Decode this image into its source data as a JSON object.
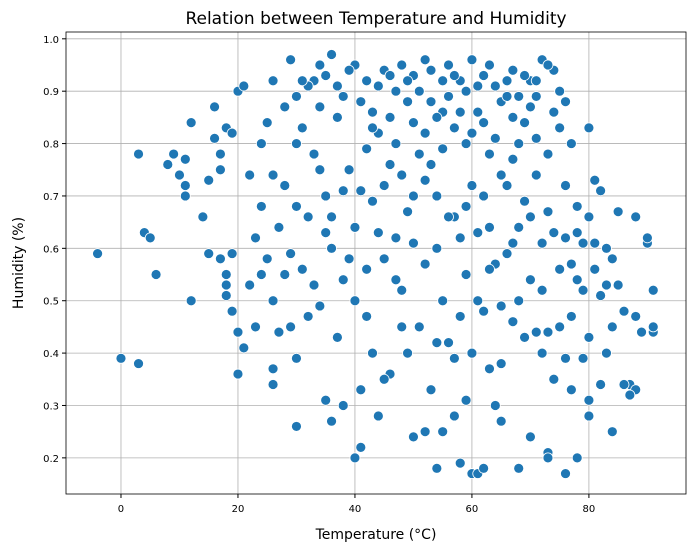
{
  "chart_data": {
    "type": "scatter",
    "title": "Relation between Temperature and Humidity",
    "x_label": "Temperature (°C)",
    "y_label": "Humidity (%)",
    "color": "#1f77b4",
    "grid": true,
    "xlim": [
      -9.4,
      96.6
    ],
    "ylim": [
      0.131,
      1.013
    ],
    "xticks": [
      0,
      20,
      40,
      60,
      80
    ],
    "yticks": [
      0.2,
      0.3,
      0.4,
      0.5,
      0.6,
      0.7,
      0.8,
      0.9,
      {
        "value": 1,
        "label": "1.0"
      }
    ],
    "x": [
      -4,
      0,
      3,
      3,
      4,
      5,
      6,
      8,
      9,
      10,
      11,
      11,
      11,
      12,
      12,
      14,
      15,
      15,
      16,
      16,
      17,
      17,
      17,
      18,
      18,
      18,
      18,
      19,
      19,
      19,
      20,
      20,
      20,
      21,
      21,
      22,
      22,
      23,
      24,
      25,
      26,
      26,
      26,
      29,
      30,
      30,
      33,
      35,
      36,
      36,
      38,
      40,
      41,
      43,
      46,
      50,
      52,
      54,
      55,
      57,
      58,
      59,
      60,
      61,
      62,
      65,
      68,
      70,
      73,
      73,
      76,
      78,
      80,
      84,
      85,
      87,
      88,
      89,
      90,
      91,
      91,
      91,
      90,
      86,
      88,
      88,
      87,
      86,
      85,
      80,
      77,
      76,
      74,
      72,
      70,
      67,
      65,
      63,
      60,
      58,
      56,
      52,
      50,
      48,
      45,
      42,
      40,
      38,
      35,
      32,
      30,
      28,
      23,
      24,
      25,
      26,
      27,
      28,
      29,
      30,
      31,
      32,
      33,
      34,
      35,
      36,
      37,
      38,
      39,
      40,
      41,
      42,
      43,
      44,
      45,
      46,
      47,
      48,
      49,
      50,
      51,
      52,
      53,
      54,
      55,
      56,
      57,
      58,
      59,
      60,
      61,
      62,
      63,
      64,
      65,
      66,
      67,
      68,
      69,
      70,
      71,
      72,
      73,
      74,
      75,
      76,
      77,
      78,
      79,
      80,
      81,
      82,
      83,
      84,
      82,
      81,
      24,
      27,
      29,
      31,
      33,
      34,
      36,
      37,
      39,
      41,
      42,
      44,
      45,
      46,
      47,
      48,
      49,
      50,
      51,
      53,
      54,
      55,
      56,
      57,
      58,
      59,
      61,
      62,
      63,
      64,
      65,
      66,
      67,
      68,
      69,
      70,
      71,
      72,
      73,
      74,
      75,
      76,
      77,
      78,
      79,
      80,
      83,
      84,
      26,
      28,
      30,
      32,
      34,
      35,
      38,
      40,
      41,
      43,
      44,
      45,
      47,
      48,
      49,
      50,
      52,
      53,
      54,
      55,
      56,
      57,
      58,
      59,
      60,
      61,
      62,
      63,
      64,
      65,
      66,
      67,
      68,
      69,
      70,
      71,
      72,
      73,
      74,
      75,
      76,
      77,
      78,
      79,
      80,
      81,
      82,
      83,
      44,
      46,
      49,
      51,
      53,
      55,
      57,
      59,
      61,
      62,
      64,
      66,
      68,
      69,
      71,
      73,
      75,
      43,
      47,
      52,
      54,
      60,
      63,
      67,
      71,
      42,
      39,
      37,
      34,
      31
    ],
    "values": [
      0.59,
      0.39,
      0.38,
      0.78,
      0.63,
      0.62,
      0.55,
      0.76,
      0.78,
      0.74,
      0.72,
      0.77,
      0.7,
      0.84,
      0.5,
      0.66,
      0.59,
      0.73,
      0.81,
      0.87,
      0.58,
      0.75,
      0.78,
      0.83,
      0.55,
      0.53,
      0.51,
      0.48,
      0.59,
      0.82,
      0.36,
      0.44,
      0.9,
      0.91,
      0.41,
      0.74,
      0.53,
      0.45,
      0.55,
      0.84,
      0.34,
      0.37,
      0.92,
      0.96,
      0.26,
      0.39,
      0.92,
      0.31,
      0.97,
      0.27,
      0.3,
      0.2,
      0.22,
      0.4,
      0.36,
      0.24,
      0.25,
      0.18,
      0.25,
      0.28,
      0.19,
      0.31,
      0.17,
      0.17,
      0.18,
      0.27,
      0.18,
      0.24,
      0.21,
      0.2,
      0.17,
      0.2,
      0.28,
      0.25,
      0.67,
      0.34,
      0.66,
      0.44,
      0.61,
      0.52,
      0.44,
      0.45,
      0.62,
      0.48,
      0.47,
      0.33,
      0.32,
      0.34,
      0.53,
      0.83,
      0.8,
      0.88,
      0.94,
      0.96,
      0.92,
      0.94,
      0.88,
      0.95,
      0.96,
      0.92,
      0.95,
      0.96,
      0.93,
      0.95,
      0.94,
      0.92,
      0.95,
      0.89,
      0.93,
      0.91,
      0.89,
      0.87,
      0.62,
      0.68,
      0.58,
      0.5,
      0.64,
      0.72,
      0.45,
      0.8,
      0.56,
      0.66,
      0.78,
      0.49,
      0.7,
      0.6,
      0.85,
      0.54,
      0.75,
      0.64,
      0.88,
      0.47,
      0.69,
      0.82,
      0.58,
      0.76,
      0.9,
      0.52,
      0.67,
      0.84,
      0.45,
      0.73,
      0.88,
      0.6,
      0.79,
      0.42,
      0.66,
      0.86,
      0.55,
      0.72,
      0.91,
      0.48,
      0.64,
      0.81,
      0.38,
      0.59,
      0.77,
      0.5,
      0.69,
      0.87,
      0.44,
      0.61,
      0.78,
      0.35,
      0.56,
      0.72,
      0.47,
      0.63,
      0.52,
      0.43,
      0.61,
      0.51,
      0.4,
      0.58,
      0.71,
      0.73,
      0.8,
      0.44,
      0.59,
      0.83,
      0.53,
      0.75,
      0.66,
      0.43,
      0.58,
      0.71,
      0.56,
      0.63,
      0.35,
      0.85,
      0.54,
      0.74,
      0.4,
      0.61,
      0.78,
      0.33,
      0.7,
      0.5,
      0.89,
      0.39,
      0.62,
      0.8,
      0.5,
      0.7,
      0.37,
      0.57,
      0.74,
      0.89,
      0.46,
      0.64,
      0.84,
      0.54,
      0.74,
      0.4,
      0.67,
      0.86,
      0.45,
      0.62,
      0.33,
      0.54,
      0.39,
      0.66,
      0.53,
      0.45,
      0.74,
      0.55,
      0.68,
      0.47,
      0.87,
      0.63,
      0.71,
      0.5,
      0.33,
      0.83,
      0.28,
      0.72,
      0.62,
      0.45,
      0.88,
      0.7,
      0.57,
      0.76,
      0.42,
      0.92,
      0.66,
      0.83,
      0.47,
      0.68,
      0.4,
      0.63,
      0.84,
      0.56,
      0.3,
      0.49,
      0.72,
      0.61,
      0.8,
      0.43,
      0.66,
      0.89,
      0.52,
      0.44,
      0.63,
      0.83,
      0.39,
      0.57,
      0.68,
      0.61,
      0.31,
      0.56,
      0.34,
      0.6,
      0.91,
      0.93,
      0.92,
      0.9,
      0.94,
      0.86,
      0.93,
      0.9,
      0.86,
      0.93,
      0.91,
      0.92,
      0.89,
      0.93,
      0.92,
      0.95,
      0.9,
      0.86,
      0.8,
      0.82,
      0.85,
      0.82,
      0.78,
      0.85,
      0.81,
      0.79,
      0.94,
      0.91,
      0.95,
      0.92
    ]
  }
}
